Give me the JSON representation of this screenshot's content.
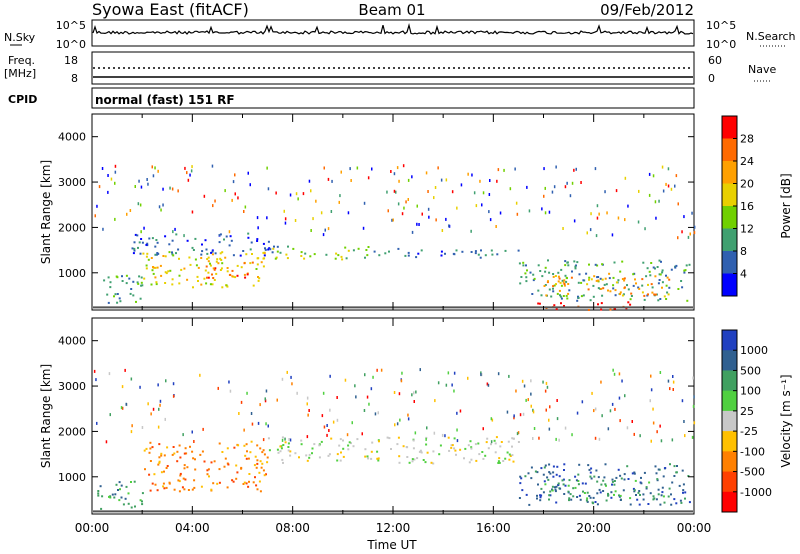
{
  "header": {
    "station": "Syowa East (fitACF)",
    "beam": "Beam 01",
    "date": "09/Feb/2012"
  },
  "top_panels": {
    "nsky_label": "N.Sky",
    "nsky_ticks": [
      "10^5",
      "10^0"
    ],
    "nsearch_label": "N.Search",
    "nsearch_ticks": [
      "10^5",
      "10^0"
    ],
    "freq_label": "Freq.",
    "freq_unit": "[MHz]",
    "freq_ticks": [
      "18",
      "8"
    ],
    "nave_label": "Nave",
    "nave_ticks": [
      "60",
      "0"
    ],
    "cpid_label": "CPID",
    "cpid_value": "normal (fast) 151 RF"
  },
  "chart_data": [
    {
      "type": "heatmap",
      "name": "power-panel",
      "ylabel": "Slant Range [km]",
      "xlabel": "Time UT",
      "x_ticks": [
        "00:00",
        "04:00",
        "08:00",
        "12:00",
        "16:00",
        "20:00",
        "00:00"
      ],
      "y_ticks": [
        "4000",
        "3000",
        "2000",
        "1000"
      ],
      "ylim": [
        180,
        4500
      ],
      "xlim_hours": [
        0,
        24
      ],
      "colorbar": {
        "label": "Power [dB]",
        "ticks": [
          "28",
          "24",
          "20",
          "16",
          "12",
          "8",
          "4"
        ],
        "colors": [
          "#ff0000",
          "#ff6a00",
          "#ffa000",
          "#e8d000",
          "#70d000",
          "#40a070",
          "#3060b0",
          "#0000ff"
        ]
      },
      "regions": [
        {
          "t0": 0.2,
          "t1": 2.0,
          "r0": 300,
          "r1": 1000,
          "level": 2
        },
        {
          "t0": 1.5,
          "t1": 7.5,
          "r0": 1400,
          "r1": 1900,
          "level": 1
        },
        {
          "t0": 2.0,
          "t1": 7.0,
          "r0": 700,
          "r1": 1500,
          "level": 4
        },
        {
          "t0": 4.5,
          "t1": 6.5,
          "r0": 900,
          "r1": 1300,
          "level": 6
        },
        {
          "t0": 7.0,
          "t1": 11.0,
          "r0": 1300,
          "r1": 1600,
          "level": 3
        },
        {
          "t0": 11.0,
          "t1": 17.0,
          "r0": 1350,
          "r1": 1550,
          "level": 1
        },
        {
          "t0": 17.0,
          "t1": 23.8,
          "r0": 400,
          "r1": 1300,
          "level": 2
        },
        {
          "t0": 18.0,
          "t1": 23.0,
          "r0": 500,
          "r1": 1000,
          "level": 5
        },
        {
          "t0": 17.5,
          "t1": 21.5,
          "r0": 200,
          "r1": 400,
          "level": 7
        }
      ]
    },
    {
      "type": "heatmap",
      "name": "velocity-panel",
      "ylabel": "Slant Range [km]",
      "xlabel": "Time UT",
      "x_ticks": [
        "00:00",
        "04:00",
        "08:00",
        "12:00",
        "16:00",
        "20:00",
        "00:00"
      ],
      "y_ticks": [
        "4000",
        "3000",
        "2000",
        "1000"
      ],
      "ylim": [
        180,
        4500
      ],
      "xlim_hours": [
        0,
        24
      ],
      "colorbar": {
        "label": "Velocity [m s⁻¹]",
        "ticks": [
          "1000",
          "500",
          "100",
          "25",
          "-25",
          "-100",
          "-500",
          "-1000"
        ],
        "colors": [
          "#2040c0",
          "#306090",
          "#40a060",
          "#50d040",
          "#c8c8c8",
          "#ffc000",
          "#ff8000",
          "#ff4000",
          "#ff0000"
        ]
      },
      "regions": [
        {
          "t0": 0.2,
          "t1": 2.0,
          "r0": 300,
          "r1": 1000,
          "level": 2
        },
        {
          "t0": 2.0,
          "t1": 7.0,
          "r0": 700,
          "r1": 1800,
          "level": 6
        },
        {
          "t0": 7.0,
          "t1": 17.0,
          "r0": 1300,
          "r1": 1900,
          "level": 4
        },
        {
          "t0": 17.0,
          "t1": 23.8,
          "r0": 400,
          "r1": 1300,
          "level": 1
        },
        {
          "t0": 18.0,
          "t1": 23.0,
          "r0": 500,
          "r1": 1000,
          "level": 2
        }
      ]
    }
  ]
}
